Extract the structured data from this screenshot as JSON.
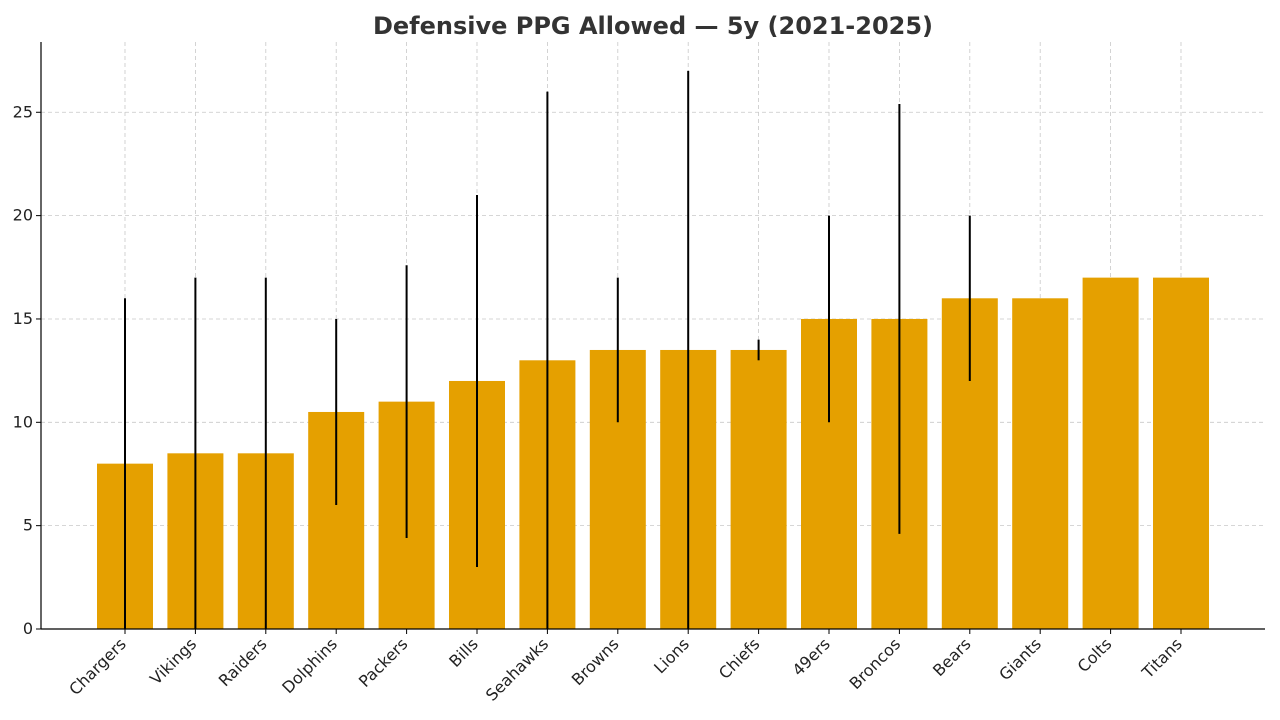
{
  "chart_data": {
    "type": "bar",
    "title": "Defensive PPG Allowed — 5y (2021-2025)",
    "xlabel": "",
    "ylabel": "",
    "categories": [
      "Chargers",
      "Vikings",
      "Raiders",
      "Dolphins",
      "Packers",
      "Bills",
      "Seahawks",
      "Browns",
      "Lions",
      "Chiefs",
      "49ers",
      "Broncos",
      "Bears",
      "Giants",
      "Colts",
      "Titans"
    ],
    "values": [
      8,
      8.5,
      8.5,
      10.5,
      11,
      12,
      13,
      13.5,
      13.5,
      13.5,
      15,
      15,
      16,
      16,
      17,
      17
    ],
    "error_low": [
      0,
      0,
      0,
      6,
      4.4,
      3,
      0,
      10,
      0,
      13,
      10,
      4.6,
      12,
      16,
      17,
      17
    ],
    "error_high": [
      16,
      17,
      17,
      15,
      17.6,
      21,
      26,
      17,
      27,
      14,
      20,
      25.4,
      20,
      16,
      17,
      17
    ],
    "ylim": [
      0,
      28.4
    ],
    "yticks": [
      0,
      5,
      10,
      15,
      20,
      25
    ],
    "grid": true,
    "bar_color": "#E5A000",
    "error_color": "#000000"
  }
}
